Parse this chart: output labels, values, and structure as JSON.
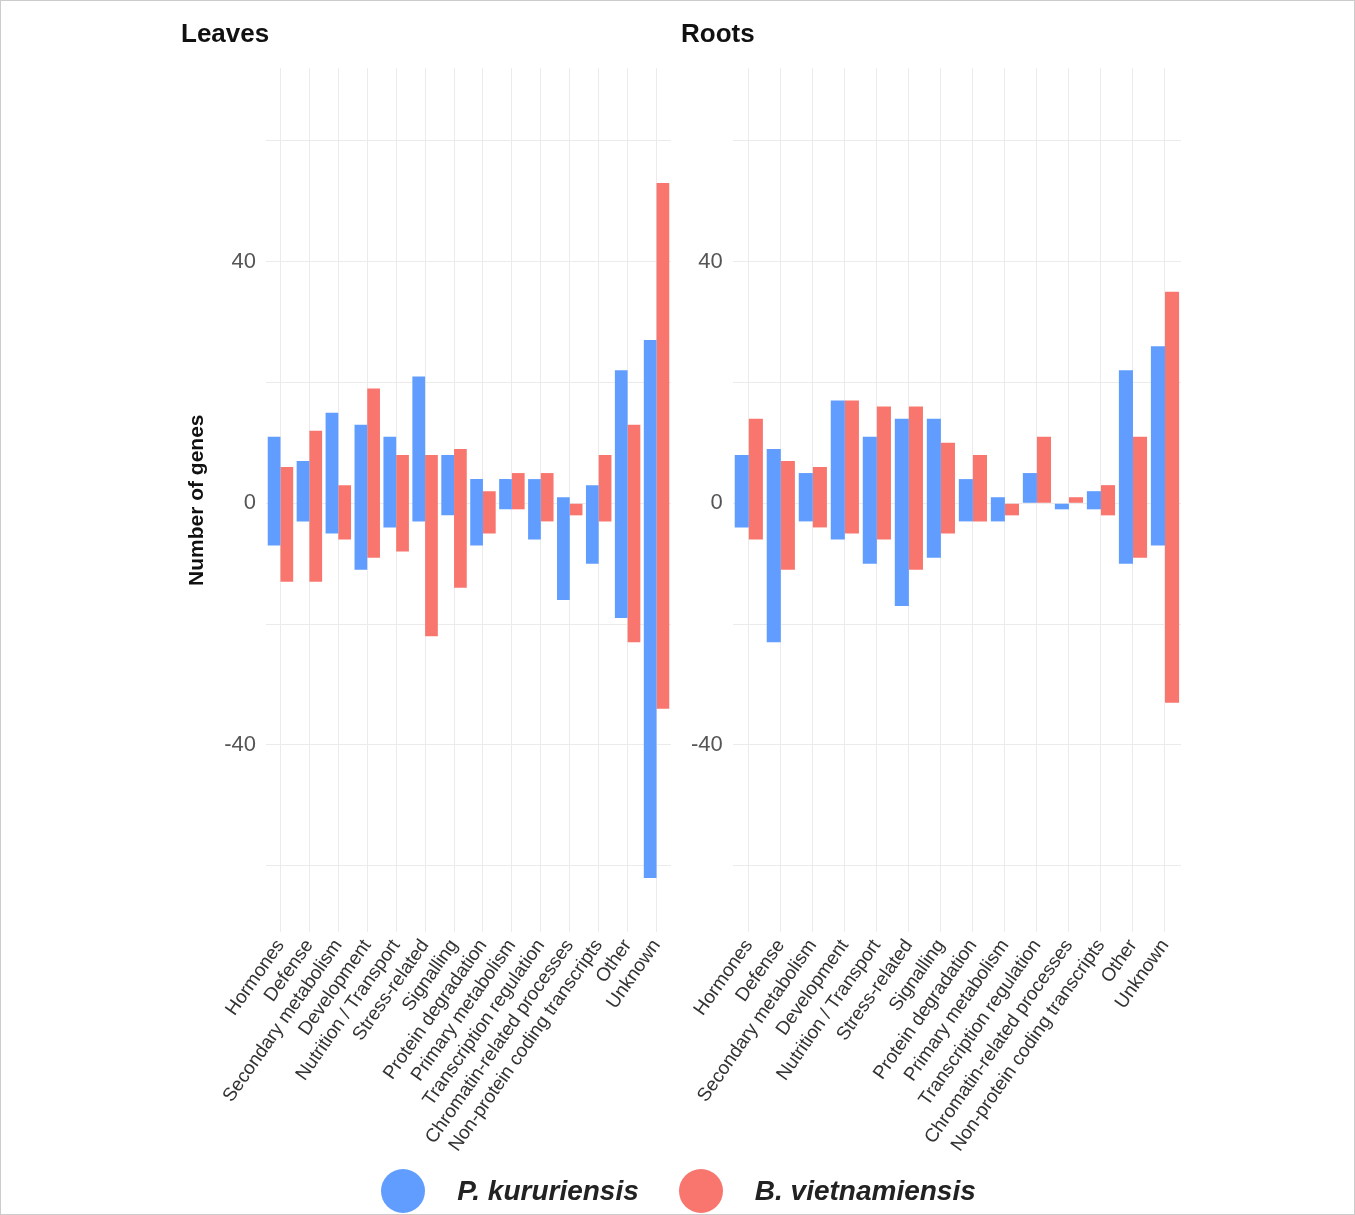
{
  "chart_data": [
    {
      "type": "bar",
      "title": "Leaves",
      "ylabel": "Number of genes",
      "categories": [
        "Hormones",
        "Defense",
        "Secondary metabolism",
        "Development",
        "Nutrition / Transport",
        "Stress-related",
        "Signalling",
        "Protein degradation",
        "Primary metabolism",
        "Transcription regulation",
        "Chromatin-related processes",
        "Non-protein coding transcripts",
        "Other",
        "Unknown"
      ],
      "series": [
        {
          "name": "P. kururiensis",
          "color": "#619cff",
          "base": [
            -7,
            -3,
            -5,
            -11,
            -4,
            -3,
            -2,
            -7,
            -1,
            -6,
            -16,
            -10,
            -19,
            -62
          ],
          "values": [
            18,
            10,
            20,
            24,
            15,
            24,
            10,
            11,
            5,
            10,
            17,
            13,
            41,
            89
          ]
        },
        {
          "name": "B. vietnamiensis",
          "color": "#f8766d",
          "base": [
            -13,
            -13,
            -6,
            -9,
            -8,
            -22,
            -14,
            -5,
            -1,
            -3,
            -2,
            -3,
            -23,
            -34
          ],
          "values": [
            19,
            25,
            9,
            28,
            16,
            30,
            23,
            7,
            6,
            8,
            2,
            11,
            36,
            87
          ]
        }
      ],
      "ylim": [
        -71,
        72
      ],
      "yticks": [
        {
          "value": -60,
          "label": null
        },
        -40,
        {
          "value": -20,
          "label": null
        },
        0,
        {
          "value": 20,
          "label": null
        },
        40,
        {
          "value": 60,
          "label": null
        }
      ],
      "grid": true,
      "legend": "bottom"
    },
    {
      "type": "bar",
      "title": "Roots",
      "categories": [
        "Hormones",
        "Defense",
        "Secondary metabolism",
        "Development",
        "Nutrition / Transport",
        "Stress-related",
        "Signalling",
        "Protein degradation",
        "Primary metabolism",
        "Transcription regulation",
        "Chromatin-related processes",
        "Non-protein coding transcripts",
        "Other",
        "Unknown"
      ],
      "series": [
        {
          "name": "P. kururiensis",
          "color": "#619cff",
          "base": [
            -4,
            -23,
            -3,
            -6,
            -10,
            -17,
            -9,
            -3,
            -3,
            0,
            -1,
            -1,
            -10,
            -7
          ],
          "values": [
            12,
            32,
            8,
            23,
            21,
            31,
            23,
            7,
            4,
            5,
            1,
            3,
            32,
            33
          ]
        },
        {
          "name": "B. vietnamiensis",
          "color": "#f8766d",
          "base": [
            -6,
            -11,
            -4,
            -5,
            -6,
            -11,
            -5,
            -3,
            -2,
            0,
            0,
            -2,
            -9,
            -33
          ],
          "values": [
            20,
            18,
            10,
            22,
            22,
            27,
            15,
            11,
            2,
            11,
            1,
            5,
            20,
            68
          ]
        }
      ],
      "ylim": [
        -71,
        72
      ],
      "yticks": [
        {
          "value": -60,
          "label": null
        },
        -40,
        {
          "value": -20,
          "label": null
        },
        0,
        {
          "value": 20,
          "label": null
        },
        40,
        {
          "value": 60,
          "label": null
        }
      ],
      "grid": true,
      "legend": "bottom"
    }
  ]
}
